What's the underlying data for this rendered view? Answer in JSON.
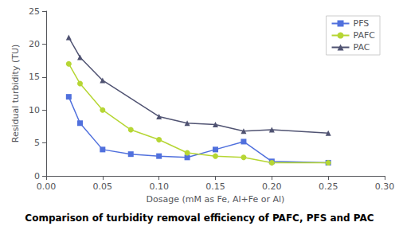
{
  "chart_data": {
    "type": "line",
    "title": "Comparison of turbidity removal efficiency of PAFC, PFS and PAC",
    "x_label": "Dosage (mM as Fe, Al+Fe or Al)",
    "y_label": "Residual turbidity (TU)",
    "series": [
      {
        "name": "PFS",
        "marker": "square",
        "x": [
          0.02,
          0.03,
          0.05,
          0.075,
          0.1,
          0.125,
          0.15,
          0.175,
          0.2,
          0.25
        ],
        "values": [
          12.0,
          8.0,
          4.0,
          3.3,
          3.0,
          2.8,
          4.0,
          5.2,
          2.2,
          2.0
        ]
      },
      {
        "name": "PAFC",
        "marker": "circle",
        "x": [
          0.02,
          0.03,
          0.05,
          0.075,
          0.1,
          0.125,
          0.15,
          0.175,
          0.2,
          0.25
        ],
        "values": [
          17.0,
          14.0,
          10.0,
          7.0,
          5.5,
          3.5,
          3.0,
          2.8,
          2.0,
          2.0
        ]
      },
      {
        "name": "PAC",
        "marker": "triangle",
        "x": [
          0.02,
          0.03,
          0.05,
          0.1,
          0.125,
          0.15,
          0.175,
          0.2,
          0.25
        ],
        "values": [
          21.0,
          18.0,
          14.5,
          9.0,
          8.0,
          7.8,
          6.8,
          7.0,
          6.5
        ]
      }
    ],
    "xlim": [
      0.0,
      0.3
    ],
    "ylim": [
      0,
      25
    ],
    "xticks": [
      {
        "value": 0.0,
        "label": "0.00"
      },
      {
        "value": 0.05,
        "label": "0.05"
      },
      {
        "value": 0.1,
        "label": "0.10"
      },
      {
        "value": 0.15,
        "label": "0.15"
      },
      {
        "value": 0.2,
        "label": "0.20"
      },
      {
        "value": 0.25,
        "label": "0.25"
      },
      {
        "value": 0.3,
        "label": "0.30"
      }
    ],
    "yticks": [
      0,
      5,
      10,
      15,
      20,
      25
    ],
    "grid": false,
    "legend": "upper right"
  }
}
